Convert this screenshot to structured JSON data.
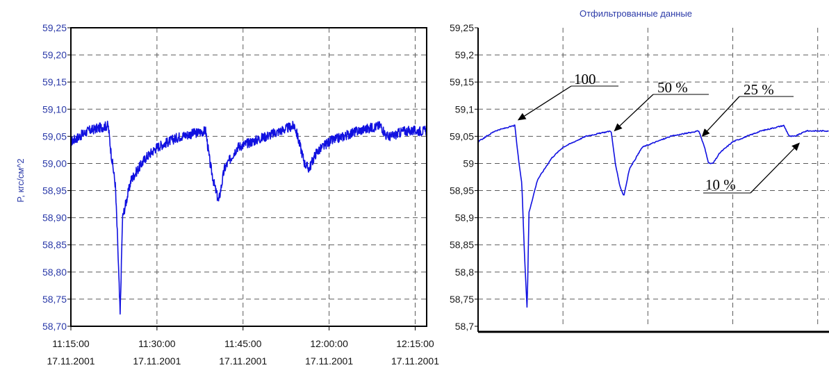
{
  "colors": {
    "series": "#1010e0",
    "axis_text": "#2a39a8"
  },
  "chart_data": [
    {
      "type": "line",
      "title": "",
      "ylabel": "P, кгс/см^2",
      "xlabel": "",
      "ylim": [
        58.7,
        59.25
      ],
      "grid": true,
      "yticks": [
        "59,25",
        "59,20",
        "59,15",
        "59,10",
        "59,05",
        "59,00",
        "58,95",
        "58,90",
        "58,85",
        "58,80",
        "58,75",
        "58,70"
      ],
      "xticks": [
        {
          "time": "11:15:00",
          "date": "17.11.2001"
        },
        {
          "time": "11:30:00",
          "date": "17.11.2001"
        },
        {
          "time": "11:45:00",
          "date": "17.11.2001"
        },
        {
          "time": "12:00:00",
          "date": "17.11.2001"
        },
        {
          "time": "12:15:00",
          "date": "17.11.2001"
        }
      ],
      "noisy": true,
      "series": [
        {
          "points": [
            [
              "11:15:00",
              59.04
            ],
            [
              "11:18:00",
              59.06
            ],
            [
              "11:21:30",
              59.07
            ],
            [
              "11:22:00",
              59.02
            ],
            [
              "11:22:45",
              58.96
            ],
            [
              "11:23:10",
              58.85
            ],
            [
              "11:23:35",
              58.72
            ],
            [
              "11:24:00",
              58.9
            ],
            [
              "11:25:30",
              58.97
            ],
            [
              "11:28:00",
              59.01
            ],
            [
              "11:30:00",
              59.03
            ],
            [
              "11:34:00",
              59.05
            ],
            [
              "11:38:30",
              59.06
            ],
            [
              "11:39:15",
              59.0
            ],
            [
              "11:40:00",
              58.96
            ],
            [
              "11:40:45",
              58.93
            ],
            [
              "11:41:45",
              58.99
            ],
            [
              "11:44:00",
              59.03
            ],
            [
              "11:49:00",
              59.05
            ],
            [
              "11:54:00",
              59.07
            ],
            [
              "11:55:00",
              59.03
            ],
            [
              "11:55:45",
              59.0
            ],
            [
              "11:56:30",
              58.99
            ],
            [
              "11:57:45",
              59.02
            ],
            [
              "12:00:00",
              59.04
            ],
            [
              "12:05:00",
              59.06
            ],
            [
              "12:09:00",
              59.07
            ],
            [
              "12:10:00",
              59.05
            ],
            [
              "12:11:00",
              59.05
            ],
            [
              "12:13:00",
              59.06
            ],
            [
              "12:17:00",
              59.06
            ]
          ]
        }
      ]
    },
    {
      "type": "line",
      "title": "Отфильтрованные данные",
      "ylabel": "",
      "xlabel": "",
      "ylim": [
        58.7,
        59.25
      ],
      "grid": true,
      "yticks": [
        "59,25",
        "59,2",
        "59,15",
        "59,1",
        "59,05",
        "59",
        "58,95",
        "58,9",
        "58,85",
        "58,8",
        "58,75",
        "58,7"
      ],
      "noisy": false,
      "series": [
        {
          "points": [
            [
              "11:15:00",
              59.04
            ],
            [
              "11:18:00",
              59.06
            ],
            [
              "11:21:30",
              59.07
            ],
            [
              "11:22:00",
              59.02
            ],
            [
              "11:22:45",
              58.96
            ],
            [
              "11:23:10",
              58.84
            ],
            [
              "11:23:40",
              58.73
            ],
            [
              "11:24:00",
              58.91
            ],
            [
              "11:25:30",
              58.97
            ],
            [
              "11:28:00",
              59.01
            ],
            [
              "11:30:00",
              59.03
            ],
            [
              "11:34:00",
              59.05
            ],
            [
              "11:38:30",
              59.06
            ],
            [
              "11:39:15",
              59.0
            ],
            [
              "11:40:00",
              58.96
            ],
            [
              "11:40:45",
              58.94
            ],
            [
              "11:41:45",
              58.99
            ],
            [
              "11:44:00",
              59.03
            ],
            [
              "11:49:00",
              59.05
            ],
            [
              "11:54:00",
              59.06
            ],
            [
              "11:55:00",
              59.03
            ],
            [
              "11:55:45",
              59.0
            ],
            [
              "11:56:30",
              59.0
            ],
            [
              "11:57:45",
              59.02
            ],
            [
              "12:00:00",
              59.04
            ],
            [
              "12:05:00",
              59.06
            ],
            [
              "12:09:00",
              59.07
            ],
            [
              "12:10:00",
              59.05
            ],
            [
              "12:11:00",
              59.05
            ],
            [
              "12:13:00",
              59.06
            ],
            [
              "12:17:00",
              59.06
            ]
          ]
        }
      ],
      "annotations": [
        {
          "text": "100",
          "point": [
            "11:21:30",
            59.07
          ]
        },
        {
          "text": "50 %",
          "point": [
            "11:38:30",
            59.05
          ]
        },
        {
          "text": "25 %",
          "point": [
            "11:54:00",
            59.04
          ]
        },
        {
          "text": "10 %",
          "point": [
            "12:11:00",
            59.05
          ]
        }
      ]
    }
  ]
}
